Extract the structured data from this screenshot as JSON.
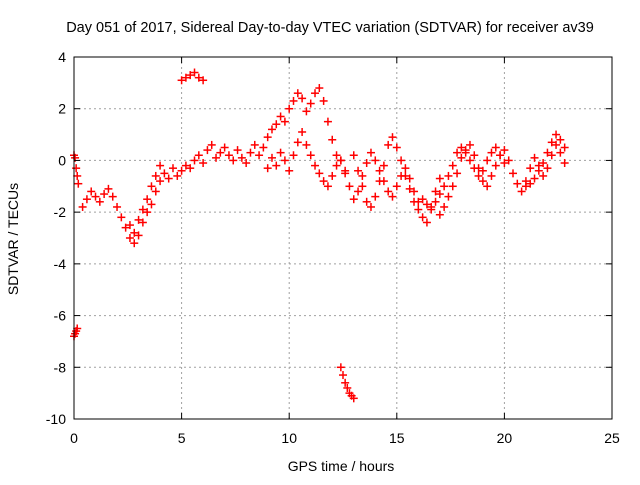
{
  "chart_data": {
    "type": "scatter",
    "title": "Day 051 of 2017, Sidereal Day-to-day VTEC variation (SDTVAR) for receiver av39",
    "xlabel": "GPS time / hours",
    "ylabel": "SDTVAR / TECUs",
    "xlim": [
      0,
      25
    ],
    "ylim": [
      -10,
      4
    ],
    "xticks": [
      "0",
      "5",
      "10",
      "15",
      "20",
      "25"
    ],
    "yticks": [
      "4",
      "2",
      "0",
      "-2",
      "-4",
      "-6",
      "-8",
      "-10"
    ],
    "grid": true,
    "marker": "+",
    "color": "#ff0000",
    "series": [
      {
        "name": "SDTVAR",
        "x": [
          0.0,
          0.05,
          0.1,
          0.15,
          0.2,
          0.0,
          0.05,
          0.1,
          0.15,
          0.4,
          0.6,
          0.8,
          1.0,
          1.2,
          1.4,
          1.6,
          1.8,
          2.0,
          2.2,
          2.4,
          2.6,
          2.8,
          3.0,
          3.2,
          3.4,
          3.6,
          3.8,
          4.0,
          2.6,
          2.8,
          3.0,
          3.2,
          3.4,
          3.6,
          3.8,
          4.0,
          4.2,
          4.4,
          4.6,
          4.8,
          5.0,
          5.2,
          5.4,
          5.6,
          5.8,
          6.0,
          6.2,
          6.4,
          6.6,
          6.8,
          7.0,
          5.0,
          5.2,
          5.4,
          5.6,
          5.8,
          6.0,
          7.2,
          7.4,
          7.6,
          7.8,
          8.0,
          8.2,
          8.4,
          8.6,
          8.8,
          9.0,
          9.2,
          9.4,
          9.6,
          9.8,
          10.0,
          10.2,
          10.4,
          10.6,
          10.8,
          11.0,
          11.2,
          11.4,
          11.6,
          11.8,
          12.0,
          12.2,
          12.4,
          9.0,
          9.2,
          9.4,
          9.6,
          9.8,
          10.0,
          10.2,
          10.4,
          10.6,
          10.8,
          11.0,
          11.2,
          11.4,
          11.6,
          11.8,
          12.0,
          12.2,
          12.4,
          12.6,
          12.4,
          12.5,
          12.6,
          12.7,
          12.8,
          12.9,
          13.0,
          12.6,
          12.8,
          13.0,
          13.2,
          13.4,
          13.6,
          13.8,
          14.0,
          14.2,
          14.4,
          14.6,
          14.8,
          15.0,
          15.2,
          15.4,
          15.6,
          15.8,
          16.0,
          13.0,
          13.2,
          13.4,
          13.6,
          13.8,
          14.0,
          14.2,
          14.4,
          14.6,
          14.8,
          15.0,
          15.2,
          15.4,
          15.6,
          15.8,
          16.0,
          16.2,
          16.4,
          16.6,
          16.8,
          17.0,
          16.2,
          16.4,
          16.6,
          16.8,
          17.0,
          17.2,
          17.4,
          17.6,
          17.8,
          18.0,
          18.2,
          18.4,
          18.6,
          18.8,
          19.0,
          19.2,
          19.4,
          19.6,
          19.8,
          20.0,
          17.0,
          17.2,
          17.4,
          17.6,
          17.8,
          18.0,
          18.2,
          18.4,
          18.6,
          18.8,
          19.0,
          19.2,
          19.4,
          19.6,
          19.8,
          20.0,
          20.2,
          20.4,
          20.6,
          20.8,
          21.0,
          21.2,
          21.4,
          21.6,
          21.8,
          22.0,
          22.2,
          22.4,
          22.6,
          22.8,
          21.0,
          21.2,
          21.4,
          21.6,
          21.8,
          22.0,
          22.2,
          22.4,
          22.6,
          22.8
        ],
        "y": [
          0.2,
          0.1,
          -0.3,
          -0.6,
          -0.9,
          -6.8,
          -6.7,
          -6.6,
          -6.5,
          -1.8,
          -1.5,
          -1.2,
          -1.4,
          -1.6,
          -1.3,
          -1.1,
          -1.4,
          -1.8,
          -2.2,
          -2.6,
          -3.0,
          -3.2,
          -2.9,
          -2.4,
          -2.0,
          -1.7,
          -1.2,
          -0.8,
          -2.5,
          -2.8,
          -2.3,
          -1.9,
          -1.5,
          -1.0,
          -0.6,
          -0.2,
          -0.5,
          -0.7,
          -0.3,
          -0.6,
          -0.4,
          -0.2,
          -0.3,
          0.0,
          0.2,
          -0.1,
          0.4,
          0.6,
          0.1,
          0.3,
          0.5,
          3.1,
          3.2,
          3.3,
          3.4,
          3.2,
          3.1,
          0.2,
          0.0,
          0.4,
          0.1,
          -0.1,
          0.3,
          0.6,
          0.2,
          0.5,
          0.9,
          1.2,
          1.4,
          1.7,
          1.5,
          2.0,
          2.3,
          2.6,
          2.4,
          1.9,
          2.2,
          2.6,
          2.8,
          2.3,
          1.5,
          0.8,
          0.2,
          0.0,
          -0.3,
          0.1,
          -0.2,
          0.3,
          0.0,
          -0.4,
          0.2,
          0.7,
          1.1,
          0.6,
          0.2,
          -0.2,
          -0.5,
          -0.8,
          -1.0,
          -0.6,
          -0.2,
          0.0,
          -0.4,
          -8.0,
          -8.3,
          -8.6,
          -8.8,
          -9.0,
          -9.1,
          -9.2,
          -0.5,
          -1.0,
          -1.5,
          -1.2,
          -0.6,
          -0.1,
          0.3,
          0.0,
          -0.4,
          -0.8,
          -1.2,
          -1.4,
          -1.0,
          -0.6,
          -0.3,
          -0.7,
          -1.2,
          -1.6,
          0.2,
          -0.4,
          -1.0,
          -1.6,
          -1.8,
          -1.4,
          -0.8,
          -0.2,
          0.6,
          0.9,
          0.5,
          0.0,
          -0.6,
          -1.1,
          -1.6,
          -1.9,
          -2.2,
          -2.4,
          -1.8,
          -1.2,
          -0.7,
          -1.5,
          -1.7,
          -1.9,
          -1.6,
          -1.3,
          -1.0,
          -0.6,
          -0.2,
          0.3,
          0.5,
          0.3,
          0.0,
          -0.3,
          -0.6,
          -0.4,
          0.0,
          0.3,
          0.5,
          0.2,
          -0.1,
          -2.1,
          -1.8,
          -1.4,
          -1.0,
          -0.5,
          0.1,
          0.4,
          0.6,
          0.2,
          -0.3,
          -0.8,
          -1.0,
          -0.6,
          -0.2,
          0.2,
          0.4,
          0.0,
          -0.5,
          -0.9,
          -1.2,
          -0.8,
          -0.3,
          0.1,
          -0.2,
          -0.6,
          -0.3,
          0.2,
          0.6,
          0.3,
          -0.1,
          -1.0,
          -0.9,
          -0.7,
          -0.4,
          -0.1,
          0.3,
          0.7,
          1.0,
          0.8,
          0.5
        ]
      }
    ]
  }
}
